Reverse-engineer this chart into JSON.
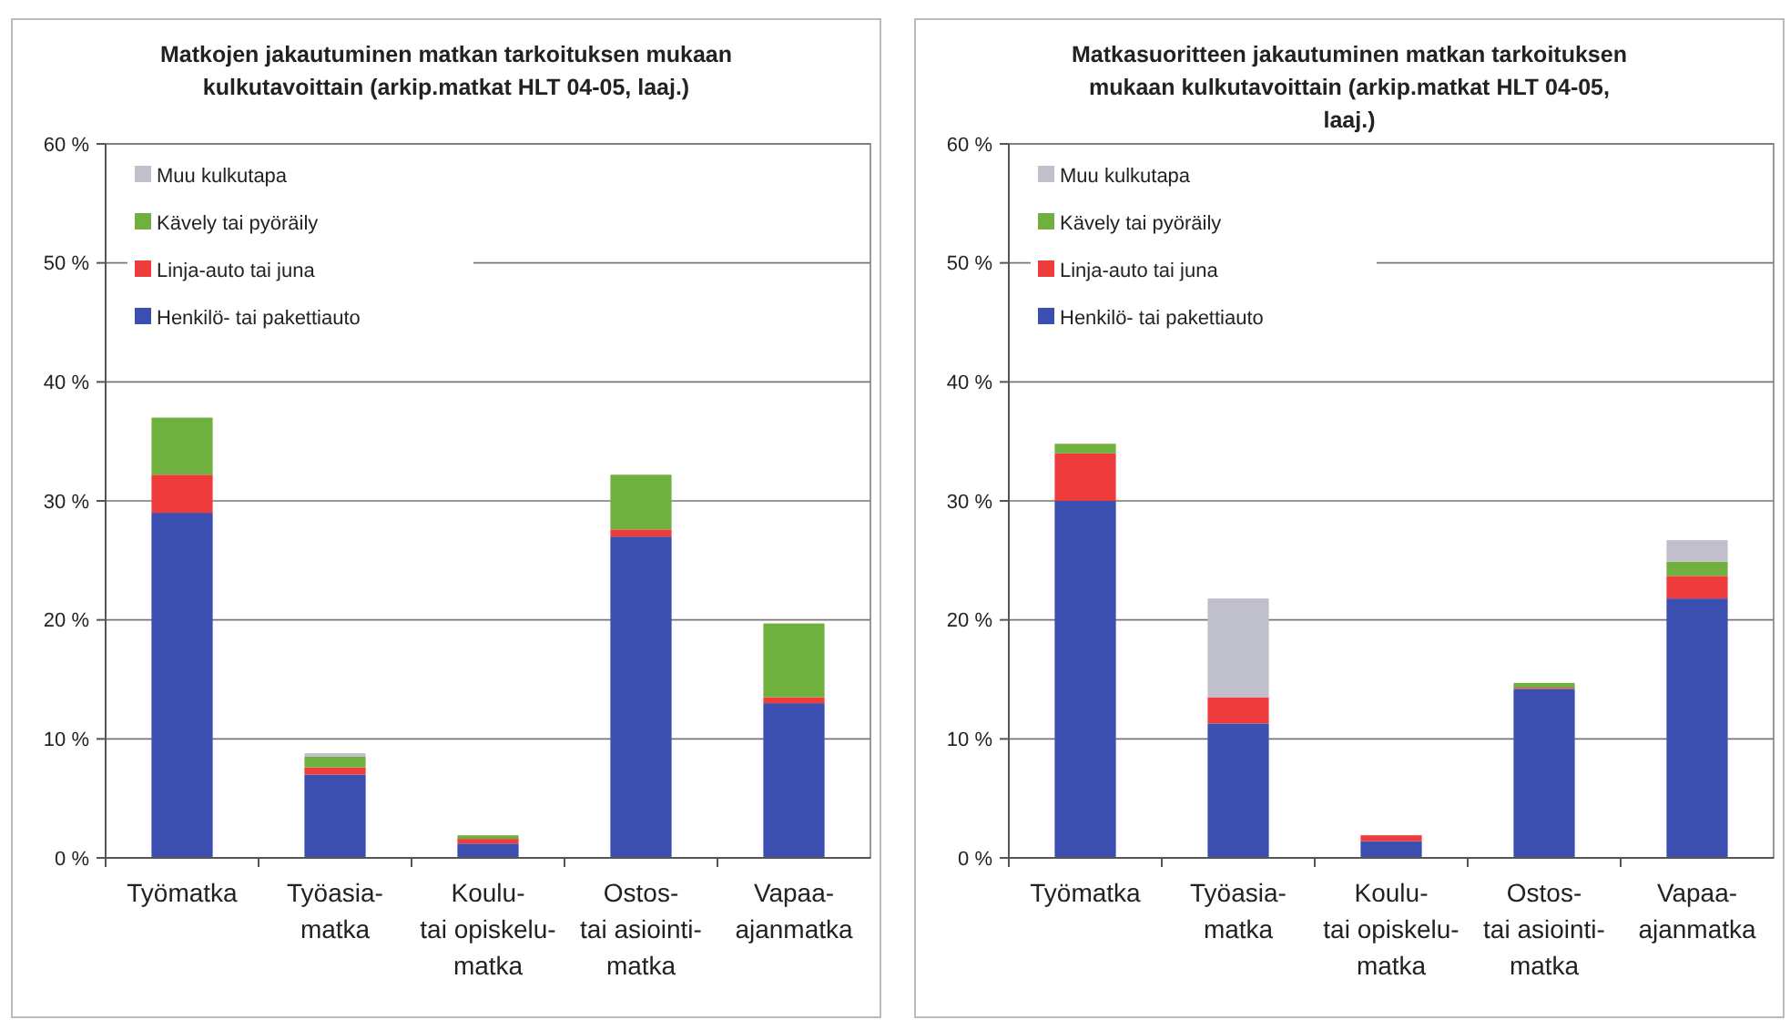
{
  "chart_data": [
    {
      "type": "bar",
      "title": "Matkojen jakautuminen matkan tarkoituksen mukaan kulkutavoittain (arkip.matkat HLT 04-05, laaj.)",
      "categories": [
        "Työmatka",
        "Työasia-matka",
        "Koulu- tai opiskelu-matka",
        "Ostos- tai asiointi-matka",
        "Vapaa-ajanmatka"
      ],
      "stacked": true,
      "ylim": [
        0,
        60
      ],
      "yticks": [
        {
          "value": 0,
          "label": "0 %"
        },
        {
          "value": 10,
          "label": "10 %"
        },
        {
          "value": 20,
          "label": "20 %"
        },
        {
          "value": 30,
          "label": "30 %"
        },
        {
          "value": 40,
          "label": "40 %"
        },
        {
          "value": 50,
          "label": "50 %"
        },
        {
          "value": 60,
          "label": "60 %"
        }
      ],
      "grid": "y",
      "legend": "top left",
      "series": [
        {
          "name": "Henkilö- tai pakettiauto",
          "color": "#3a4fb0",
          "values": [
            29,
            7,
            1.2,
            27,
            13
          ]
        },
        {
          "name": "Linja-auto tai juna",
          "color": "#ee3b3b",
          "values": [
            3.2,
            0.6,
            0.4,
            0.6,
            0.5
          ]
        },
        {
          "name": "Kävely tai pyöräily",
          "color": "#6fb03f",
          "values": [
            4.8,
            0.9,
            0.3,
            4.6,
            6.2
          ]
        },
        {
          "name": "Muu kulkutapa",
          "color": "#c0c0cc",
          "values": [
            0,
            0.3,
            0,
            0,
            null
          ]
        }
      ]
    },
    {
      "type": "bar",
      "title": "Matkasuoritteen jakautuminen matkan tarkoituksen mukaan kulkutavoittain (arkip.matkat HLT 04-05, laaj.)",
      "categories": [
        "Työmatka",
        "Työasia-matka",
        "Koulu- tai opiskelu-matka",
        "Ostos- tai asiointi-matka",
        "Vapaa-ajanmatka"
      ],
      "stacked": true,
      "ylim": [
        0,
        60
      ],
      "yticks": [
        {
          "value": 0,
          "label": "0 %"
        },
        {
          "value": 10,
          "label": "10 %"
        },
        {
          "value": 20,
          "label": "20 %"
        },
        {
          "value": 30,
          "label": "30 %"
        },
        {
          "value": 40,
          "label": "40 %"
        },
        {
          "value": 50,
          "label": "50 %"
        },
        {
          "value": 60,
          "label": "60 %"
        }
      ],
      "grid": "y",
      "legend": "top left",
      "series": [
        {
          "name": "Henkilö- tai pakettiauto",
          "color": "#3a4fb0",
          "values": [
            30,
            11.3,
            1.4,
            14.2,
            21.8
          ]
        },
        {
          "name": "Linja-auto tai juna",
          "color": "#ee3b3b",
          "values": [
            4,
            2.2,
            0.5,
            0.1,
            1.9
          ]
        },
        {
          "name": "Kävely tai pyöräily",
          "color": "#6fb03f",
          "values": [
            0.8,
            0,
            0,
            0.4,
            1.2
          ]
        },
        {
          "name": "Muu kulkutapa",
          "color": "#c0c0cc",
          "values": [
            0,
            8.3,
            0,
            0,
            1.8
          ]
        }
      ]
    }
  ]
}
